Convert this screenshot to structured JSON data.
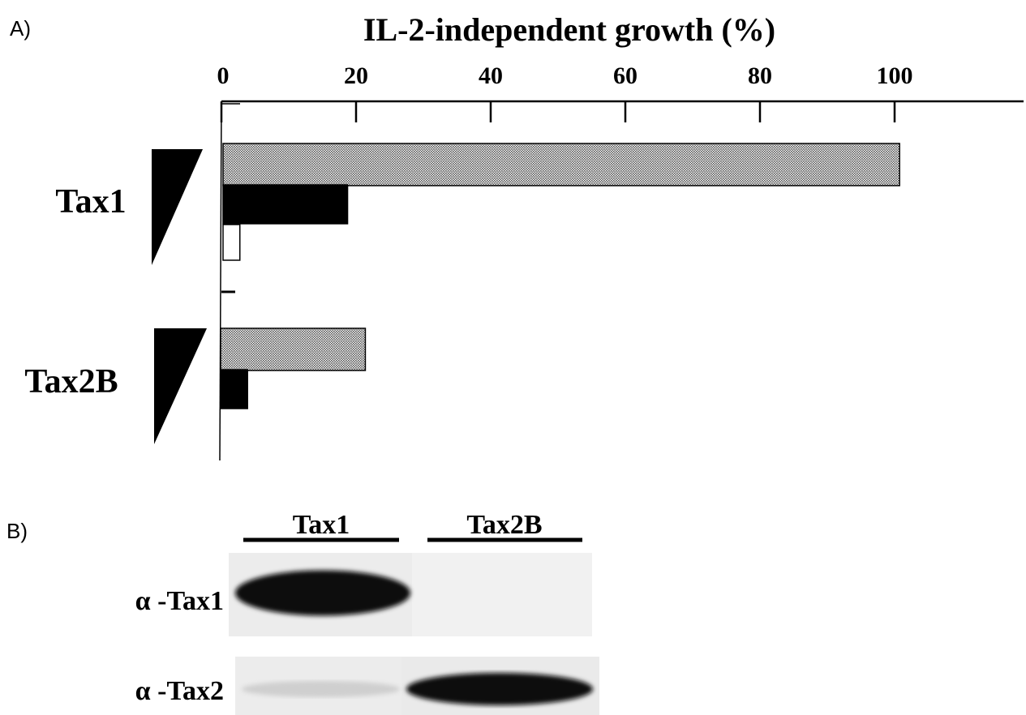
{
  "panels": {
    "a_label": "A)",
    "b_label": "B)"
  },
  "chart_data": {
    "type": "bar",
    "orientation": "horizontal",
    "title": "IL-2-independent growth (%)",
    "xlabel": "",
    "ylabel": "",
    "xlim": [
      0,
      120
    ],
    "xticks": [
      0,
      20,
      40,
      60,
      80,
      100
    ],
    "tick_labels": [
      "0",
      "20",
      "40",
      "60",
      "80",
      "100"
    ],
    "axis_position": "top",
    "grid": false,
    "legend": null,
    "groups": [
      {
        "label": "Tax1",
        "bars": [
          {
            "level": 1,
            "value": 100.5,
            "fill": "dotted-gray"
          },
          {
            "level": 2,
            "value": 18.5,
            "fill": "black"
          },
          {
            "level": 3,
            "value": 2.5,
            "fill": "white"
          }
        ]
      },
      {
        "label": "Tax2B",
        "bars": [
          {
            "level": 1,
            "value": 21.5,
            "fill": "dotted-gray"
          },
          {
            "level": 2,
            "value": 4,
            "fill": "black"
          }
        ]
      }
    ],
    "annotations": [
      "dose wedge (high to low) beside each group"
    ],
    "colors": {
      "dotted_gray": "#a8a8a8",
      "black": "#000000",
      "white": "#ffffff"
    }
  },
  "western_blot": {
    "lanes": [
      "Tax1",
      "Tax2B"
    ],
    "rows": [
      {
        "label": "α -Tax1",
        "signal": [
          "strong",
          "none"
        ]
      },
      {
        "label": "α -Tax2",
        "signal": [
          "faint",
          "strong"
        ]
      }
    ]
  }
}
